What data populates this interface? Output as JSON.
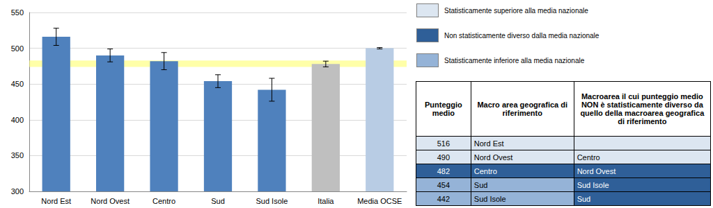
{
  "chart_data": {
    "type": "bar",
    "categories": [
      "Nord Est",
      "Nord Ovest",
      "Centro",
      "Sud",
      "Sud Isole",
      "Italia",
      "Media OCSE"
    ],
    "values": [
      516,
      490,
      482,
      454,
      442,
      478,
      500
    ],
    "errors": [
      12,
      9,
      12,
      9,
      16,
      4,
      1
    ],
    "colors": [
      "#4f81bd",
      "#4f81bd",
      "#4f81bd",
      "#4f81bd",
      "#4f81bd",
      "#bfbfbf",
      "#b8cce4"
    ],
    "band": [
      474,
      483
    ],
    "ylim": [
      300,
      550
    ],
    "yticks": [
      300,
      350,
      400,
      450,
      500,
      550
    ],
    "grid": true
  },
  "legend_boxes": [
    {
      "text": "Statisticamente superiore alla media nazionale",
      "color": "#dce6f1"
    },
    {
      "text": "Non statisticamente diverso dalla media nazionale",
      "color": "#2f5f98"
    },
    {
      "text": "Statisticamente inferiore alla media nazionale",
      "color": "#95b3d7"
    }
  ],
  "table": {
    "header": [
      "Punteggio medio",
      "Macro area geografica di riferimento",
      "Macroarea il cui punteggio medio NON è statisticamente diverso da quello della macroarea geografica di riferimento"
    ],
    "rows": [
      {
        "score": 516,
        "area": "Nord Est",
        "not_different": null,
        "color": "#dce6f1",
        "comparison_color": "#dce6f1"
      },
      {
        "score": 490,
        "area": "Nord Ovest",
        "not_different": "Centro",
        "color": "#dce6f1",
        "comparison_color": "#dce6f1"
      },
      {
        "score": 482,
        "area": "Centro",
        "not_different": "Nord Ovest",
        "color": "#2f5f98",
        "comparison_color": "#2f5f98"
      },
      {
        "score": 454,
        "area": "Sud",
        "not_different": "Sud Isole",
        "color": "#95b3d7",
        "comparison_color": "#2f5f98"
      },
      {
        "score": 442,
        "area": "Sud Isole",
        "not_different": "Sud",
        "color": "#95b3d7",
        "comparison_color": "#2f5f98"
      }
    ]
  }
}
